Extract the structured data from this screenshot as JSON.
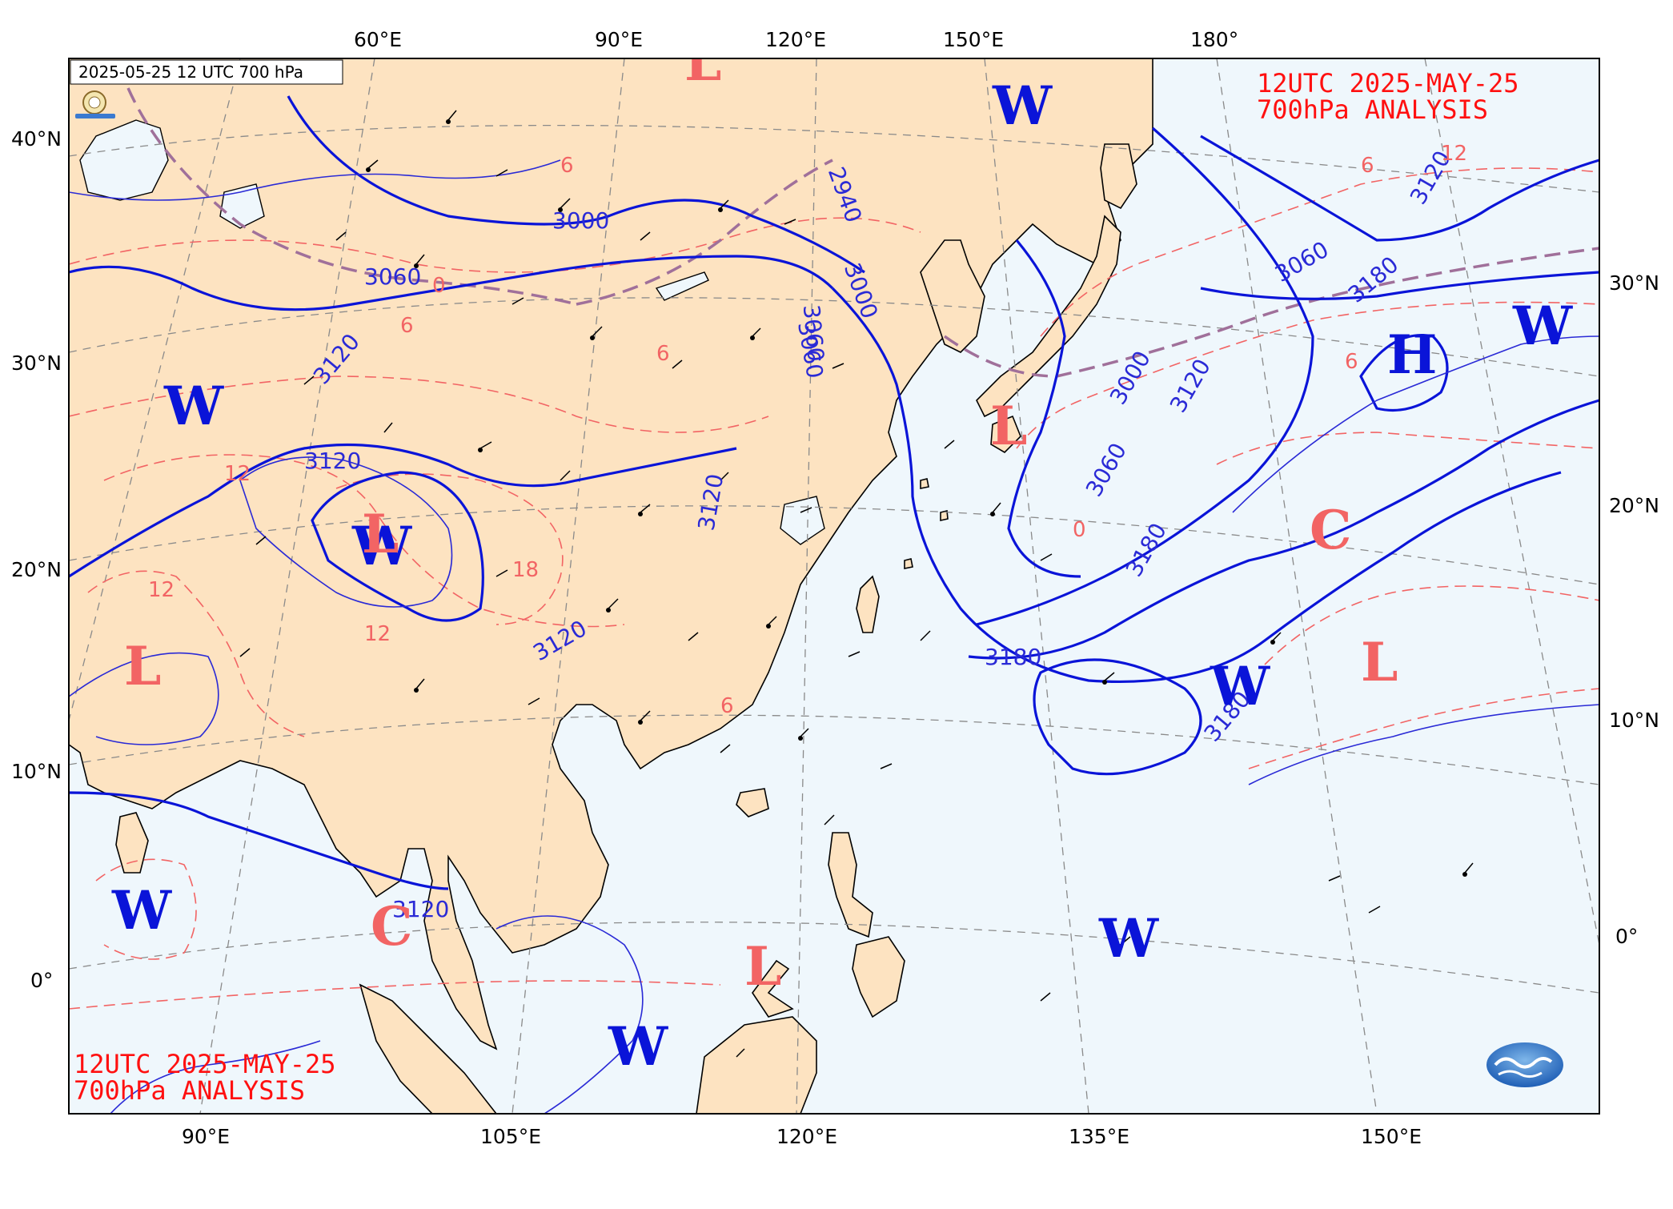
{
  "header": {
    "stamp": "2025-05-25 12 UTC 700 hPa",
    "title_top_line1": "12UTC  2025-MAY-25",
    "title_top_line2": "700hPa ANALYSIS",
    "title_bottom_line1": "12UTC  2025-MAY-25",
    "title_bottom_line2": "700hPa ANALYSIS"
  },
  "top_longitudes": [
    "60°E",
    "90°E",
    "120°E",
    "150°E",
    "180°"
  ],
  "bottom_longitudes": [
    "90°E",
    "105°E",
    "120°E",
    "135°E",
    "150°E"
  ],
  "left_latitudes": [
    "40°N",
    "30°N",
    "20°N",
    "10°N",
    "0°"
  ],
  "right_latitudes": [
    "30°N",
    "20°N",
    "10°N",
    "0°"
  ],
  "contour_labels": [
    "3000",
    "3060",
    "3120",
    "3120",
    "3120",
    "3120",
    "3120",
    "3000",
    "3060",
    "3180",
    "3120",
    "3060",
    "3180",
    "3120",
    "3000",
    "3060",
    "3180",
    "3180",
    "2940",
    "3060"
  ],
  "isotherm_labels": [
    "0",
    "6",
    "0",
    "6",
    "12",
    "18",
    "12",
    "6",
    "6",
    "12",
    "6",
    "6",
    "12"
  ],
  "systems": {
    "warm": [
      "W",
      "W",
      "W",
      "W",
      "W",
      "W",
      "W",
      "W"
    ],
    "low": [
      "L",
      "L",
      "L",
      "L",
      "L",
      "L"
    ],
    "cold": [
      "C",
      "C"
    ],
    "high": [
      "H"
    ]
  },
  "colors": {
    "land": "#fde3c1",
    "ocean": "#eff7fc",
    "height_contour": "#0a14d8",
    "isotherm": "#f26464",
    "zero_isotherm": "#a0709a",
    "annotation": "#ff1010"
  },
  "logos": {
    "agency_logo": "CWA",
    "lab_logo": "Lab"
  }
}
